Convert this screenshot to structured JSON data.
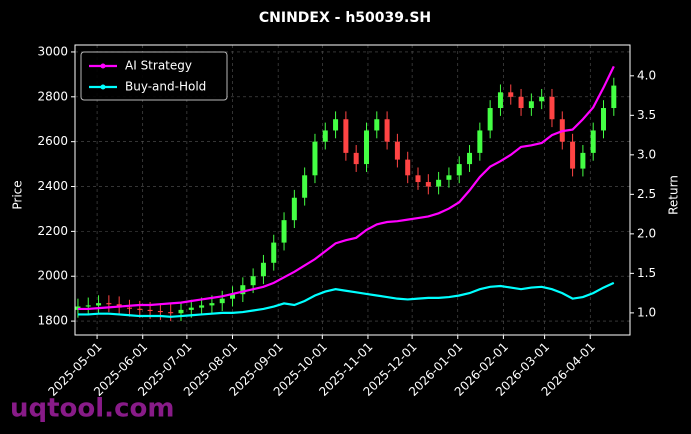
{
  "chart_data": {
    "type": "candlestick",
    "title": "CNINDEX - h50039.SH",
    "ylabel": "Price",
    "y2label": "Return",
    "watermark": "uqtool.com",
    "legend": "upper left",
    "grid": true,
    "up_color": "#44ff44",
    "down_color": "#ff4444",
    "x": [
      "2025-04-18",
      "2025-04-25",
      "2025-05-02",
      "2025-05-09",
      "2025-05-16",
      "2025-05-23",
      "2025-05-30",
      "2025-06-06",
      "2025-06-13",
      "2025-06-20",
      "2025-06-27",
      "2025-07-04",
      "2025-07-11",
      "2025-07-18",
      "2025-07-25",
      "2025-08-01",
      "2025-08-08",
      "2025-08-15",
      "2025-08-22",
      "2025-08-29",
      "2025-09-05",
      "2025-09-12",
      "2025-09-19",
      "2025-09-26",
      "2025-10-03",
      "2025-10-10",
      "2025-10-17",
      "2025-10-24",
      "2025-10-31",
      "2025-11-07",
      "2025-11-14",
      "2025-11-21",
      "2025-11-28",
      "2025-12-05",
      "2025-12-12",
      "2025-12-19",
      "2025-12-26",
      "2026-01-02",
      "2026-01-09",
      "2026-01-16",
      "2026-01-23",
      "2026-01-30",
      "2026-02-06",
      "2026-02-13",
      "2026-02-20",
      "2026-02-27",
      "2026-03-06",
      "2026-03-13",
      "2026-03-20",
      "2026-03-27",
      "2026-04-03",
      "2026-04-10",
      "2026-04-17"
    ],
    "open": [
      1850,
      1865,
      1870,
      1880,
      1875,
      1860,
      1855,
      1850,
      1845,
      1840,
      1835,
      1850,
      1860,
      1870,
      1880,
      1900,
      1920,
      1960,
      2000,
      2060,
      2150,
      2250,
      2350,
      2450,
      2600,
      2650,
      2700,
      2550,
      2500,
      2650,
      2700,
      2600,
      2520,
      2450,
      2420,
      2400,
      2430,
      2450,
      2500,
      2550,
      2650,
      2750,
      2820,
      2800,
      2750,
      2780,
      2800,
      2700,
      2600,
      2480,
      2550,
      2650,
      2750
    ],
    "high": [
      1900,
      1905,
      1915,
      1915,
      1910,
      1895,
      1890,
      1885,
      1880,
      1875,
      1885,
      1895,
      1905,
      1915,
      1935,
      1955,
      1995,
      2035,
      2095,
      2185,
      2285,
      2385,
      2485,
      2635,
      2685,
      2735,
      2735,
      2585,
      2685,
      2735,
      2735,
      2635,
      2555,
      2485,
      2455,
      2465,
      2485,
      2535,
      2585,
      2685,
      2785,
      2855,
      2855,
      2835,
      2815,
      2835,
      2835,
      2735,
      2635,
      2585,
      2685,
      2785,
      2885
    ],
    "low": [
      1815,
      1830,
      1835,
      1840,
      1825,
      1820,
      1815,
      1810,
      1805,
      1800,
      1800,
      1815,
      1825,
      1835,
      1845,
      1865,
      1885,
      1925,
      1965,
      2025,
      2115,
      2215,
      2315,
      2415,
      2565,
      2615,
      2515,
      2465,
      2465,
      2615,
      2565,
      2485,
      2415,
      2385,
      2365,
      2365,
      2395,
      2415,
      2465,
      2515,
      2615,
      2715,
      2765,
      2715,
      2715,
      2745,
      2665,
      2565,
      2445,
      2445,
      2515,
      2615,
      2715
    ],
    "close": [
      1865,
      1870,
      1880,
      1875,
      1860,
      1855,
      1850,
      1845,
      1840,
      1835,
      1850,
      1860,
      1870,
      1880,
      1900,
      1920,
      1960,
      2000,
      2060,
      2150,
      2250,
      2350,
      2450,
      2600,
      2650,
      2700,
      2550,
      2500,
      2650,
      2700,
      2600,
      2520,
      2450,
      2420,
      2400,
      2430,
      2450,
      2500,
      2550,
      2650,
      2750,
      2820,
      2800,
      2750,
      2780,
      2800,
      2700,
      2600,
      2480,
      2550,
      2650,
      2750,
      2850
    ],
    "series": [
      {
        "name": "AI Strategy",
        "color": "#ff00ff",
        "axis": "y2",
        "values": [
          1.05,
          1.05,
          1.06,
          1.07,
          1.08,
          1.09,
          1.1,
          1.1,
          1.11,
          1.12,
          1.13,
          1.15,
          1.17,
          1.19,
          1.21,
          1.24,
          1.27,
          1.3,
          1.33,
          1.38,
          1.45,
          1.52,
          1.6,
          1.68,
          1.78,
          1.88,
          1.92,
          1.95,
          2.05,
          2.12,
          2.15,
          2.16,
          2.18,
          2.2,
          2.22,
          2.26,
          2.32,
          2.4,
          2.55,
          2.72,
          2.85,
          2.92,
          3.0,
          3.1,
          3.12,
          3.15,
          3.25,
          3.3,
          3.32,
          3.45,
          3.6,
          3.85,
          4.12
        ]
      },
      {
        "name": "Buy-and-Hold",
        "color": "#00ffff",
        "axis": "y2",
        "values": [
          0.98,
          0.98,
          0.99,
          0.99,
          0.98,
          0.97,
          0.96,
          0.96,
          0.96,
          0.95,
          0.96,
          0.97,
          0.98,
          0.99,
          1.0,
          1.0,
          1.01,
          1.03,
          1.05,
          1.08,
          1.12,
          1.1,
          1.15,
          1.22,
          1.27,
          1.3,
          1.28,
          1.26,
          1.24,
          1.22,
          1.2,
          1.18,
          1.17,
          1.18,
          1.19,
          1.19,
          1.2,
          1.22,
          1.25,
          1.3,
          1.33,
          1.34,
          1.32,
          1.3,
          1.32,
          1.33,
          1.3,
          1.25,
          1.18,
          1.2,
          1.25,
          1.32,
          1.38
        ]
      }
    ],
    "xlim": [
      "2025-04-16",
      "2026-04-28"
    ],
    "xticks": [
      "2025-05-01",
      "2025-06-01",
      "2025-07-01",
      "2025-08-01",
      "2025-09-01",
      "2025-10-01",
      "2025-11-01",
      "2025-12-01",
      "2026-01-01",
      "2026-02-01",
      "2026-03-01",
      "2026-04-01"
    ],
    "ylim": [
      1738,
      3031
    ],
    "yticks": [
      1800,
      2000,
      2200,
      2400,
      2600,
      2800,
      3000
    ],
    "y2lim": [
      0.72,
      4.39
    ],
    "y2ticks": [
      {
        "value": 1,
        "label": "1.0"
      },
      {
        "value": 1.5,
        "label": "1.5"
      },
      {
        "value": 2,
        "label": "2.0"
      },
      {
        "value": 2.5,
        "label": "2.5"
      },
      {
        "value": 3,
        "label": "3.0"
      },
      {
        "value": 3.5,
        "label": "3.5"
      },
      {
        "value": 4,
        "label": "4.0"
      }
    ]
  }
}
